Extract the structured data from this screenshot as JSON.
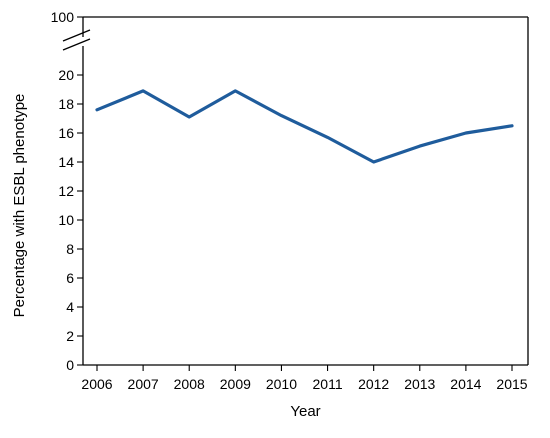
{
  "chart_data": {
    "type": "line",
    "xlabel": "Year",
    "ylabel": "Percentage with ESBL phenotype",
    "x": [
      "2006",
      "2007",
      "2008",
      "2009",
      "2010",
      "2011",
      "2012",
      "2013",
      "2014",
      "2015"
    ],
    "series": [
      {
        "values": [
          17.6,
          18.9,
          17.1,
          18.9,
          17.2,
          15.7,
          14.0,
          15.1,
          16.0,
          16.5
        ],
        "color": "#1f5c9c"
      }
    ],
    "ylim": [
      0,
      20
    ],
    "yticks": [
      0,
      2,
      4,
      6,
      8,
      10,
      12,
      14,
      16,
      18,
      20
    ],
    "axis_break": {
      "upper_tick": "100"
    },
    "grid": false,
    "legend": "none"
  }
}
